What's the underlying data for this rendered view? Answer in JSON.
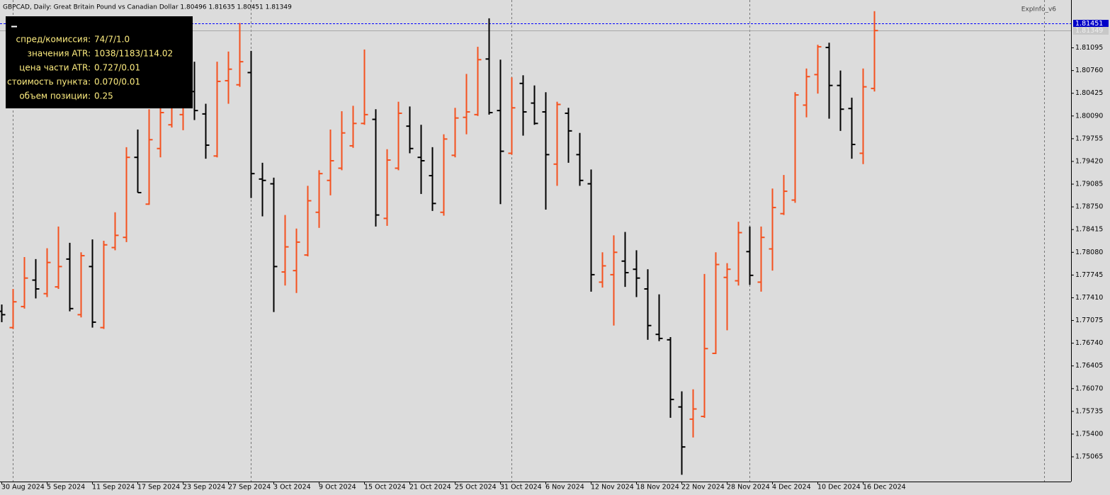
{
  "chart_data": {
    "type": "ohlc",
    "header": "GBPCAD, Daily:  Great Britain Pound vs Canadian Dollar  1.80496 1.81635 1.80451 1.81349",
    "indicator": "ExpInfo_v6",
    "info_panel": {
      "rows": [
        [
          "спред/комиссия:",
          "74/7/1.0"
        ],
        [
          "значения ATR:",
          "1038/1183/114.02"
        ],
        [
          "цена части ATR:",
          "0.727/0.01"
        ],
        [
          "стоимость пункта:",
          "0.070/0.01"
        ],
        [
          "объем позиции:",
          "0.25"
        ]
      ]
    },
    "categories": [
      "30 Aug 2024",
      null,
      null,
      null,
      "5 Sep 2024",
      null,
      null,
      null,
      "11 Sep 2024",
      null,
      null,
      null,
      "17 Sep 2024",
      null,
      null,
      null,
      "23 Sep 2024",
      null,
      null,
      null,
      "27 Sep 2024",
      null,
      null,
      null,
      "3 Oct 2024",
      null,
      null,
      null,
      "9 Oct 2024",
      null,
      null,
      null,
      "15 Oct 2024",
      null,
      null,
      null,
      "21 Oct 2024",
      null,
      null,
      null,
      "25 Oct 2024",
      null,
      null,
      null,
      "31 Oct 2024",
      null,
      null,
      null,
      "6 Nov 2024",
      null,
      null,
      null,
      "12 Nov 2024",
      null,
      null,
      null,
      "18 Nov 2024",
      null,
      null,
      null,
      "22 Nov 2024",
      null,
      null,
      null,
      "28 Nov 2024",
      null,
      null,
      null,
      "4 Dec 2024",
      null,
      null,
      null,
      "10 Dec 2024",
      null,
      null,
      null,
      "16 Dec 2024",
      null
    ],
    "open": [
      1.7721,
      1.7697,
      1.7728,
      1.7767,
      1.7747,
      1.7757,
      1.7798,
      1.7716,
      1.7787,
      1.7697,
      1.7815,
      1.783,
      1.7948,
      1.7879,
      1.7961,
      1.7996,
      1.8011,
      1.8045,
      1.8012,
      1.795,
      1.8061,
      1.8055,
      1.8073,
      1.7916,
      1.7909,
      1.7779,
      1.7781,
      1.7804,
      1.7867,
      1.7914,
      1.7932,
      1.7965,
      1.7998,
      1.8004,
      1.7858,
      1.7932,
      1.7994,
      1.7948,
      1.7921,
      1.7867,
      1.7951,
      1.8007,
      1.8011,
      1.8093,
      1.8017,
      1.7954,
      1.8057,
      1.8028,
      1.8015,
      1.7938,
      1.8013,
      1.7952,
      1.7909,
      1.7764,
      1.7775,
      1.7795,
      1.7783,
      1.7754,
      1.7687,
      1.7679,
      1.758,
      1.7562,
      1.7566,
      1.7659,
      1.7771,
      1.7766,
      1.7809,
      1.7764,
      1.7813,
      1.7865,
      1.7885,
      1.8025,
      1.807,
      1.811,
      1.8054,
      1.802,
      1.7954,
      1.80496
    ],
    "high": [
      1.7731,
      1.7754,
      1.7801,
      1.7798,
      1.7814,
      1.7846,
      1.7822,
      1.7808,
      1.7827,
      1.7825,
      1.7867,
      1.7963,
      1.7989,
      1.8019,
      1.8037,
      1.8046,
      1.8063,
      1.8089,
      1.8027,
      1.8089,
      1.8104,
      1.8146,
      1.8105,
      1.794,
      1.7918,
      1.7863,
      1.7843,
      1.7906,
      1.7929,
      1.7989,
      1.8016,
      1.8024,
      1.8107,
      1.8019,
      1.796,
      1.803,
      1.8023,
      1.7996,
      1.7963,
      1.7982,
      1.8021,
      1.8071,
      1.8111,
      1.8153,
      1.8092,
      1.8066,
      1.8069,
      1.8054,
      1.8044,
      1.803,
      1.8021,
      1.7984,
      1.793,
      1.7808,
      1.7833,
      1.7838,
      1.7811,
      1.7783,
      1.7746,
      1.7683,
      1.7603,
      1.7606,
      1.7776,
      1.7808,
      1.7792,
      1.7853,
      1.7846,
      1.7846,
      1.7902,
      1.7922,
      1.8044,
      1.8079,
      1.8114,
      1.8117,
      1.8076,
      1.8036,
      1.8079,
      1.81635
    ],
    "low": [
      1.7705,
      1.7695,
      1.7725,
      1.774,
      1.7742,
      1.7754,
      1.7721,
      1.7712,
      1.7697,
      1.7695,
      1.7811,
      1.7823,
      1.7896,
      1.7878,
      1.7948,
      1.7992,
      1.7988,
      1.8003,
      1.7946,
      1.7948,
      1.8027,
      1.8052,
      1.7888,
      1.7861,
      1.772,
      1.7759,
      1.7748,
      1.7802,
      1.7844,
      1.7892,
      1.7929,
      1.7962,
      1.7996,
      1.7846,
      1.7847,
      1.7929,
      1.7954,
      1.7894,
      1.7869,
      1.7862,
      1.7948,
      1.7982,
      1.8009,
      1.8011,
      1.7879,
      1.7952,
      1.798,
      1.7996,
      1.7871,
      1.7906,
      1.794,
      1.7906,
      1.775,
      1.7756,
      1.77,
      1.7757,
      1.7742,
      1.7679,
      1.7677,
      1.7564,
      1.748,
      1.7535,
      1.7564,
      1.7658,
      1.7693,
      1.7759,
      1.776,
      1.775,
      1.7781,
      1.7863,
      1.7881,
      1.8007,
      1.8042,
      1.8005,
      1.7987,
      1.7946,
      1.7938,
      1.80451
    ],
    "close": [
      1.7716,
      1.7735,
      1.777,
      1.7754,
      1.7793,
      1.7787,
      1.7725,
      1.7803,
      1.7705,
      1.7819,
      1.7833,
      1.7948,
      1.7896,
      1.7974,
      1.8014,
      1.8027,
      1.8044,
      1.8017,
      1.7966,
      1.806,
      1.8078,
      1.8089,
      1.7924,
      1.7914,
      1.7787,
      1.7816,
      1.7823,
      1.7884,
      1.7924,
      1.7943,
      1.7984,
      1.7998,
      1.8011,
      1.7863,
      1.7944,
      1.8013,
      1.7961,
      1.7943,
      1.788,
      1.7975,
      1.8006,
      1.8015,
      1.8092,
      1.8014,
      1.7957,
      1.8021,
      1.8015,
      1.7998,
      1.7952,
      1.8026,
      1.7987,
      1.7914,
      1.7775,
      1.7788,
      1.7808,
      1.7778,
      1.777,
      1.77,
      1.7681,
      1.7591,
      1.7521,
      1.7577,
      1.7666,
      1.779,
      1.7783,
      1.7837,
      1.7774,
      1.783,
      1.7874,
      1.7898,
      1.804,
      1.8067,
      1.8111,
      1.8054,
      1.8019,
      1.7967,
      1.8052,
      1.81349
    ],
    "up_color": "#f4511e",
    "down_color": "#000000",
    "ylim": [
      1.747,
      1.818
    ],
    "yticks": [
      1.81095,
      {
        "value": 1.8076,
        "label": "1.80760"
      },
      1.80425,
      {
        "value": 1.8009,
        "label": "1.80090"
      },
      1.79755,
      {
        "value": 1.7942,
        "label": "1.79420"
      },
      1.79085,
      {
        "value": 1.7875,
        "label": "1.78750"
      },
      1.78415,
      {
        "value": 1.7808,
        "label": "1.78080"
      },
      1.77745,
      {
        "value": 1.7741,
        "label": "1.77410"
      },
      1.77075,
      {
        "value": 1.7674,
        "label": "1.76740"
      },
      1.76405,
      {
        "value": 1.7607,
        "label": "1.76070"
      },
      1.75735,
      {
        "value": 1.754,
        "label": "1.75400"
      },
      1.75065
    ],
    "price_lines": [
      {
        "value": 1.81451,
        "color": "#0000ff"
      },
      {
        "value": 1.81349,
        "color": "#a8a8a8"
      }
    ]
  }
}
